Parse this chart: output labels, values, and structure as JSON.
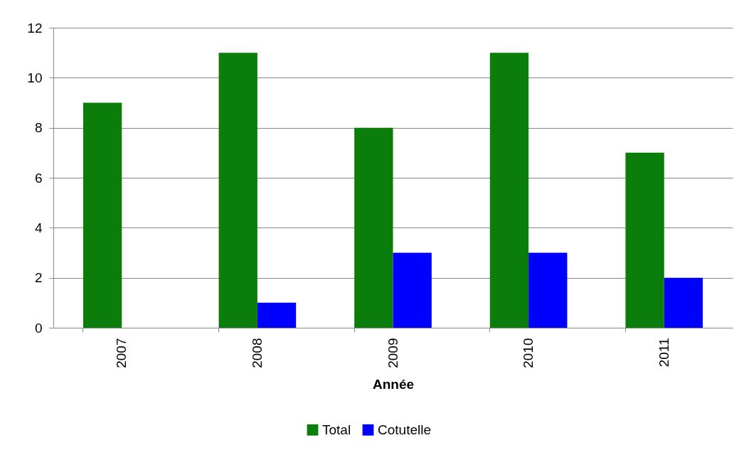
{
  "chart_data": {
    "type": "bar",
    "xlabel": "Année",
    "categories": [
      "2007",
      "2008",
      "2009",
      "2010",
      "2011"
    ],
    "series": [
      {
        "name": "Total",
        "color": "#0a7d0a",
        "values": [
          9,
          11,
          8,
          11,
          7
        ]
      },
      {
        "name": "Cotutelle",
        "color": "#0000ff",
        "values": [
          0,
          1,
          3,
          3,
          2
        ]
      }
    ],
    "ylim": [
      0,
      12
    ],
    "yticks": [
      0,
      2,
      4,
      6,
      8,
      10,
      12
    ],
    "grid": "y",
    "legend": "bottom"
  }
}
